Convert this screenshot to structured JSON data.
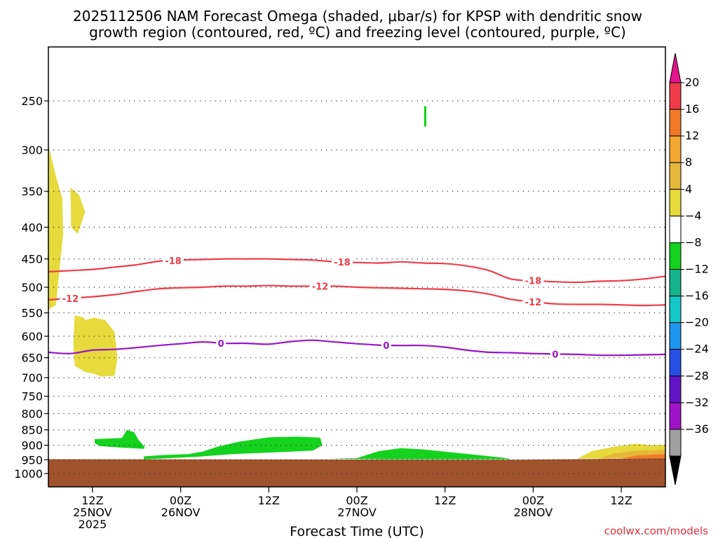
{
  "chart_data": {
    "type": "contour",
    "title_line1": "2025112506 NAM Forecast Omega (shaded, μbar/s) for KPSP with dendritic snow",
    "title_line2": "growth region (contoured, red, ºC) and freezing level (contoured, purple, ºC)",
    "xlabel": "Forecast Time (UTC)",
    "credit": "coolwx.com/models",
    "x_range_hours": [
      0,
      84
    ],
    "y_range_hpa": [
      200,
      1050
    ],
    "y_ticks": [
      "250",
      "300",
      "350",
      "400",
      "450",
      "500",
      "550",
      "600",
      "650",
      "700",
      "750",
      "800",
      "850",
      "900",
      "950",
      "1000"
    ],
    "y_tick_values": [
      250,
      300,
      350,
      400,
      450,
      500,
      550,
      600,
      650,
      700,
      750,
      800,
      850,
      900,
      950,
      1000
    ],
    "x_ticks": [
      {
        "hour": 6,
        "line1": "12Z",
        "line2": "25NOV",
        "line3": "2025"
      },
      {
        "hour": 18,
        "line1": "00Z",
        "line2": "26NOV",
        "line3": ""
      },
      {
        "hour": 30,
        "line1": "12Z",
        "line2": "",
        "line3": ""
      },
      {
        "hour": 42,
        "line1": "00Z",
        "line2": "27NOV",
        "line3": ""
      },
      {
        "hour": 54,
        "line1": "12Z",
        "line2": "",
        "line3": ""
      },
      {
        "hour": 66,
        "line1": "00Z",
        "line2": "28NOV",
        "line3": ""
      },
      {
        "hour": 78,
        "line1": "12Z",
        "line2": "",
        "line3": ""
      }
    ],
    "colorbar": {
      "labels": [
        "20",
        "16",
        "12",
        "8",
        "4",
        "−4",
        "−8",
        "−12",
        "−16",
        "−20",
        "−24",
        "−28",
        "−32",
        "−36"
      ],
      "colors": [
        "#f03c4a",
        "#f07a28",
        "#f0a830",
        "#e6b83a",
        "#e6da3c",
        "#ffffff",
        "#14d21e",
        "#14b48c",
        "#14c8c8",
        "#1e96f0",
        "#2850e6",
        "#6414c8",
        "#a014c8",
        "#a0a0a0"
      ],
      "top_arrow_color": "#e6148c",
      "bottom_arrow_color": "#000000"
    },
    "colors": {
      "dgz": "#f03c4a",
      "freezing": "#9614c8",
      "ground": "#a0522d",
      "rising": "#14d21e",
      "sinking": "#e6da3c",
      "sinking_strong": "#e6b83a",
      "sinking_max": "#f07a28"
    },
    "contours": [
      {
        "name": "-18",
        "label": "-18",
        "color": "#f03c4a",
        "x": [
          0,
          3,
          6,
          9,
          12,
          15,
          18,
          21,
          24,
          27,
          30,
          33,
          36,
          39,
          42,
          45,
          48,
          51,
          54,
          57,
          60,
          63,
          66,
          69,
          72,
          75,
          78,
          81,
          84
        ],
        "y": [
          472,
          470,
          468,
          464,
          460,
          454,
          452,
          451,
          450,
          450,
          450,
          451,
          452,
          455,
          456,
          457,
          455,
          457,
          458,
          462,
          470,
          485,
          488,
          490,
          491,
          489,
          488,
          485,
          480
        ],
        "label_x": [
          17,
          40,
          66
        ]
      },
      {
        "name": "-12",
        "label": "-12",
        "color": "#f03c4a",
        "x": [
          0,
          3,
          6,
          9,
          12,
          15,
          18,
          21,
          24,
          27,
          30,
          33,
          36,
          39,
          42,
          45,
          48,
          51,
          54,
          57,
          60,
          63,
          66,
          69,
          72,
          75,
          78,
          81,
          84
        ],
        "y": [
          524,
          521,
          518,
          514,
          508,
          503,
          501,
          500,
          498,
          498,
          497,
          498,
          498,
          498,
          500,
          501,
          502,
          503,
          504,
          507,
          513,
          523,
          528,
          532,
          533,
          533,
          534,
          535,
          534
        ],
        "label_x": [
          3,
          37,
          66
        ]
      },
      {
        "name": "0",
        "label": "0",
        "color": "#9614c8",
        "x": [
          0,
          3,
          6,
          9,
          12,
          15,
          18,
          21,
          24,
          27,
          30,
          33,
          36,
          39,
          42,
          45,
          48,
          51,
          54,
          57,
          60,
          63,
          66,
          69,
          72,
          75,
          78,
          81,
          84
        ],
        "y": [
          637,
          640,
          632,
          630,
          626,
          621,
          617,
          613,
          616,
          616,
          618,
          612,
          609,
          613,
          617,
          620,
          621,
          621,
          625,
          632,
          637,
          638,
          640,
          641,
          642,
          644,
          644,
          643,
          642
        ],
        "label_x": [
          23.5,
          46,
          69
        ]
      }
    ],
    "ground": {
      "hours": [
        0,
        63,
        84
      ],
      "pressure_hpa": [
        948,
        950,
        945
      ]
    },
    "omega_regions": [
      {
        "name": "sink-column-left",
        "value": 4,
        "color": "#e6da3c",
        "points": [
          [
            0,
            295
          ],
          [
            1.0,
            330
          ],
          [
            1.9,
            360
          ],
          [
            2.0,
            410
          ],
          [
            1.5,
            470
          ],
          [
            1.2,
            510
          ],
          [
            1.0,
            535
          ],
          [
            0.3,
            540
          ],
          [
            0,
            545
          ]
        ]
      },
      {
        "name": "sink-blob-upper",
        "value": 4,
        "color": "#e6da3c",
        "points": [
          [
            3.0,
            345
          ],
          [
            4.2,
            355
          ],
          [
            5.0,
            378
          ],
          [
            4.0,
            410
          ],
          [
            3.1,
            400
          ]
        ]
      },
      {
        "name": "sink-blob-lower",
        "value": 4,
        "color": "#e6da3c",
        "points": [
          [
            3.6,
            555
          ],
          [
            4.8,
            560
          ],
          [
            5.0,
            565
          ],
          [
            6.2,
            560
          ],
          [
            7.7,
            565
          ],
          [
            9.0,
            590
          ],
          [
            9.4,
            650
          ],
          [
            9.0,
            695
          ],
          [
            7.2,
            697
          ],
          [
            6.2,
            690
          ],
          [
            5.0,
            685
          ],
          [
            3.6,
            670
          ],
          [
            3.4,
            620
          ],
          [
            3.5,
            580
          ]
        ]
      },
      {
        "name": "rise-band-1",
        "value": -4,
        "color": "#14d21e",
        "points": [
          [
            6.3,
            880
          ],
          [
            8.0,
            878
          ],
          [
            10.0,
            876
          ],
          [
            10.7,
            850
          ],
          [
            11.7,
            858
          ],
          [
            12.2,
            880
          ],
          [
            13.1,
            905
          ],
          [
            13.0,
            912
          ],
          [
            10.0,
            908
          ],
          [
            7.0,
            903
          ],
          [
            6.3,
            893
          ]
        ]
      },
      {
        "name": "rise-band-2",
        "value": -4,
        "color": "#14d21e",
        "points": [
          [
            13.0,
            938
          ],
          [
            16.0,
            933
          ],
          [
            19.0,
            930
          ],
          [
            21.0,
            922
          ],
          [
            23.0,
            905
          ],
          [
            26.0,
            888
          ],
          [
            30.0,
            874
          ],
          [
            34.0,
            872
          ],
          [
            37.0,
            875
          ],
          [
            37.3,
            900
          ],
          [
            36.0,
            918
          ],
          [
            30.0,
            925
          ],
          [
            25.0,
            930
          ],
          [
            20.0,
            940
          ],
          [
            15.0,
            946
          ],
          [
            13.0,
            948
          ]
        ]
      },
      {
        "name": "rise-band-3",
        "value": -4,
        "color": "#14d21e",
        "points": [
          [
            38.0,
            946
          ],
          [
            42.0,
            944
          ],
          [
            45.0,
            920
          ],
          [
            48.0,
            910
          ],
          [
            51.0,
            914
          ],
          [
            54.0,
            922
          ],
          [
            58.0,
            932
          ],
          [
            62.0,
            943
          ],
          [
            63.0,
            948
          ],
          [
            55.0,
            948
          ],
          [
            45.0,
            948
          ]
        ]
      },
      {
        "name": "rise-streak-upper",
        "value": -4,
        "color": "#14d21e",
        "points": [
          [
            51.15,
            255
          ],
          [
            51.45,
            255
          ],
          [
            51.45,
            275
          ],
          [
            51.15,
            275
          ]
        ]
      },
      {
        "name": "sink-right",
        "value": 4,
        "color": "#e6da3c",
        "points": [
          [
            72.0,
            946
          ],
          [
            74.0,
            920
          ],
          [
            77.0,
            905
          ],
          [
            80.0,
            895
          ],
          [
            82.0,
            900
          ],
          [
            84.0,
            898
          ],
          [
            84.0,
            945
          ]
        ]
      },
      {
        "name": "sink-right-strong",
        "value": 8,
        "color": "#e6b83a",
        "points": [
          [
            75.0,
            946
          ],
          [
            77.0,
            928
          ],
          [
            80.0,
            918
          ],
          [
            84.0,
            915
          ],
          [
            84.0,
            945
          ]
        ]
      },
      {
        "name": "sink-right-max",
        "value": 12,
        "color": "#f07a28",
        "points": [
          [
            78.0,
            946
          ],
          [
            80.0,
            935
          ],
          [
            84.0,
            930
          ],
          [
            84.0,
            946
          ]
        ]
      }
    ]
  }
}
